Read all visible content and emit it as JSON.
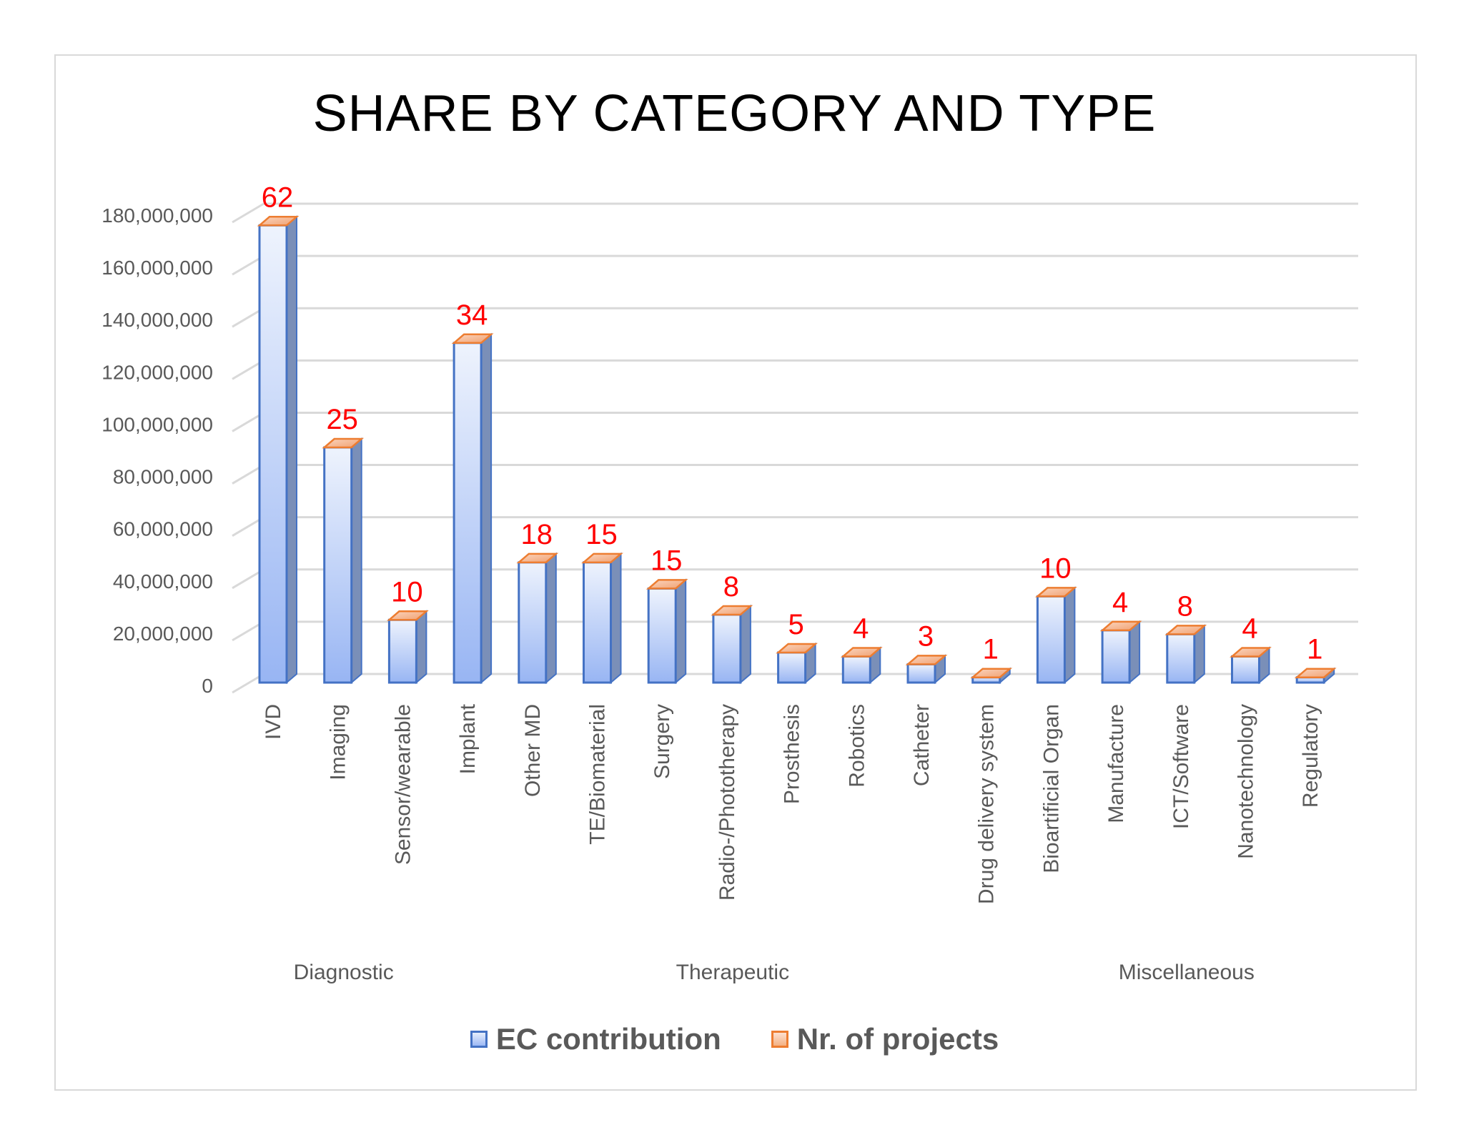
{
  "chart_data": {
    "type": "bar",
    "title": "SHARE BY CATEGORY AND TYPE",
    "categories": [
      "IVD",
      "Imaging",
      "Sensor/wearable",
      "Implant",
      "Other MD",
      "TE/Biomaterial",
      "Surgery",
      "Radio-/Phototherapy",
      "Prosthesis",
      "Robotics",
      "Catheter",
      "Drug delivery system",
      "Bioartificial Organ",
      "Manufacture",
      "ICT/Software",
      "Nanotechnology",
      "Regulatory"
    ],
    "groups": [
      {
        "name": "Diagnostic",
        "from": 0,
        "to": 3
      },
      {
        "name": "Therapeutic",
        "from": 3,
        "to": 12
      },
      {
        "name": "Miscellaneous",
        "from": 12,
        "to": 17
      }
    ],
    "series": [
      {
        "name": "EC contribution",
        "values": [
          175000000,
          90000000,
          24000000,
          130000000,
          46000000,
          46000000,
          36000000,
          26000000,
          11500000,
          10000000,
          7000000,
          2000000,
          33000000,
          20000000,
          18500000,
          10000000,
          2000000
        ]
      },
      {
        "name": "Nr. of projects",
        "values": [
          62,
          25,
          10,
          34,
          18,
          15,
          15,
          8,
          5,
          4,
          3,
          1,
          10,
          4,
          8,
          4,
          1
        ]
      }
    ],
    "ylim": [
      0,
      180000000
    ],
    "yticks": [
      0,
      20000000,
      40000000,
      60000000,
      80000000,
      100000000,
      120000000,
      140000000,
      160000000,
      180000000
    ],
    "ytick_labels": [
      "0",
      "20,000,000",
      "40,000,000",
      "60,000,000",
      "80,000,000",
      "100,000,000",
      "120,000,000",
      "140,000,000",
      "160,000,000",
      "180,000,000"
    ],
    "grid": true,
    "legend_position": "bottom",
    "colors": {
      "ec": "#4472c4",
      "ec_light": "#e6eefc",
      "ec_dark": "#9db9f5",
      "nr": "#ed7d31",
      "label": "#ff0000"
    }
  }
}
